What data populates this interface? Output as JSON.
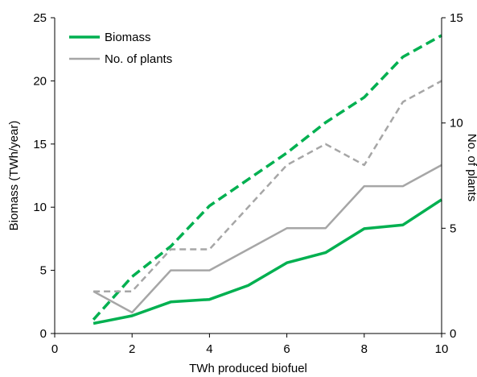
{
  "chart_data": {
    "type": "line",
    "xlabel": "TWh produced biofuel",
    "ylabel": "Biomass (TWh/year)",
    "y2label": "No. of plants",
    "xlim": [
      0,
      10
    ],
    "ylim": [
      0,
      25
    ],
    "y2lim": [
      0,
      15
    ],
    "x_ticks": [
      "0",
      "2",
      "4",
      "6",
      "8",
      "10"
    ],
    "y_ticks": [
      "0",
      "5",
      "10",
      "15",
      "20",
      "25"
    ],
    "y2_ticks": [
      "0",
      "5",
      "10",
      "15"
    ],
    "grid": false,
    "legend_position": "top-left",
    "legend": [
      {
        "label": "Biomass",
        "color": "#00b050",
        "style": "solid"
      },
      {
        "label": "No. of plants",
        "color": "#a6a6a6",
        "style": "solid"
      }
    ],
    "series": [
      {
        "axis": "left",
        "color": "#00b050",
        "style": "solid",
        "x": [
          1,
          2,
          3,
          4,
          5,
          6,
          7,
          8,
          9,
          10
        ],
        "values": [
          0.8,
          1.4,
          2.5,
          2.7,
          3.8,
          5.6,
          6.4,
          8.3,
          8.6,
          10.6
        ]
      },
      {
        "axis": "left",
        "color": "#00b050",
        "style": "dashed",
        "x": [
          1,
          2,
          3,
          4,
          5,
          6,
          7,
          8,
          9,
          10
        ],
        "values": [
          1.1,
          4.5,
          6.9,
          10.1,
          12.2,
          14.3,
          16.7,
          18.7,
          21.9,
          23.6
        ]
      },
      {
        "axis": "right",
        "color": "#a6a6a6",
        "style": "solid",
        "x": [
          1,
          2,
          3,
          4,
          5,
          6,
          7,
          8,
          9,
          10
        ],
        "values": [
          2,
          1,
          3,
          3,
          4,
          5,
          5,
          7,
          7,
          8
        ]
      },
      {
        "axis": "right",
        "color": "#a6a6a6",
        "style": "dashed",
        "x": [
          1,
          2,
          3,
          4,
          5,
          6,
          7,
          8,
          9,
          10
        ],
        "values": [
          2,
          2,
          4,
          4,
          6,
          8,
          9,
          8,
          11,
          12
        ]
      }
    ]
  }
}
